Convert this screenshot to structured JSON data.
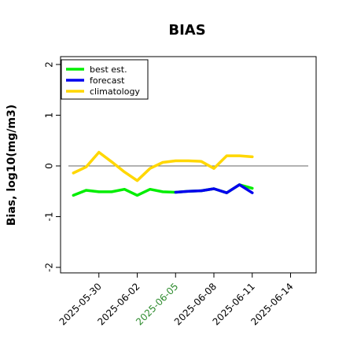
{
  "chart_data": {
    "type": "line",
    "title": "BIAS",
    "ylabel": "Bias, log10(mg/m3)",
    "xlabel": "",
    "ylim": [
      -2.0,
      2.0
    ],
    "yticks": [
      -2,
      -1,
      0,
      1,
      2
    ],
    "ytick_labels": [
      "-2",
      "-1",
      "0",
      "1",
      "2"
    ],
    "xlim": [
      "2025-05-27",
      "2025-06-16"
    ],
    "xticks": [
      "2025-05-30",
      "2025-06-02",
      "2025-06-05",
      "2025-06-08",
      "2025-06-11",
      "2025-06-14"
    ],
    "highlight_xtick": "2025-06-05",
    "highlight_color": "#2e8b2e",
    "grid": false,
    "reference_line": 0,
    "legend": {
      "position": "top-left"
    },
    "series": [
      {
        "name": "best est.",
        "color": "#00ee00",
        "x": [
          "2025-05-28",
          "2025-05-29",
          "2025-05-30",
          "2025-05-31",
          "2025-06-01",
          "2025-06-02",
          "2025-06-03",
          "2025-06-04",
          "2025-06-05",
          "2025-06-06",
          "2025-06-07",
          "2025-06-08",
          "2025-06-09",
          "2025-06-10",
          "2025-06-11"
        ],
        "values": [
          -0.58,
          -0.48,
          -0.51,
          -0.51,
          -0.46,
          -0.58,
          -0.46,
          -0.51,
          -0.52,
          -0.5,
          -0.49,
          -0.45,
          -0.53,
          -0.37,
          -0.44
        ]
      },
      {
        "name": "forecast",
        "color": "#0000ee",
        "x": [
          "2025-06-05",
          "2025-06-06",
          "2025-06-07",
          "2025-06-08",
          "2025-06-09",
          "2025-06-10",
          "2025-06-11"
        ],
        "values": [
          -0.52,
          -0.5,
          -0.49,
          -0.45,
          -0.53,
          -0.37,
          -0.53
        ]
      },
      {
        "name": "climatology",
        "color": "#ffd700",
        "x": [
          "2025-05-28",
          "2025-05-29",
          "2025-05-30",
          "2025-05-31",
          "2025-06-01",
          "2025-06-02",
          "2025-06-03",
          "2025-06-04",
          "2025-06-05",
          "2025-06-06",
          "2025-06-07",
          "2025-06-08",
          "2025-06-09",
          "2025-06-10",
          "2025-06-11"
        ],
        "values": [
          -0.14,
          -0.02,
          0.27,
          0.08,
          -0.12,
          -0.29,
          -0.05,
          0.07,
          0.1,
          0.1,
          0.09,
          -0.05,
          0.2,
          0.2,
          0.18
        ]
      }
    ]
  }
}
